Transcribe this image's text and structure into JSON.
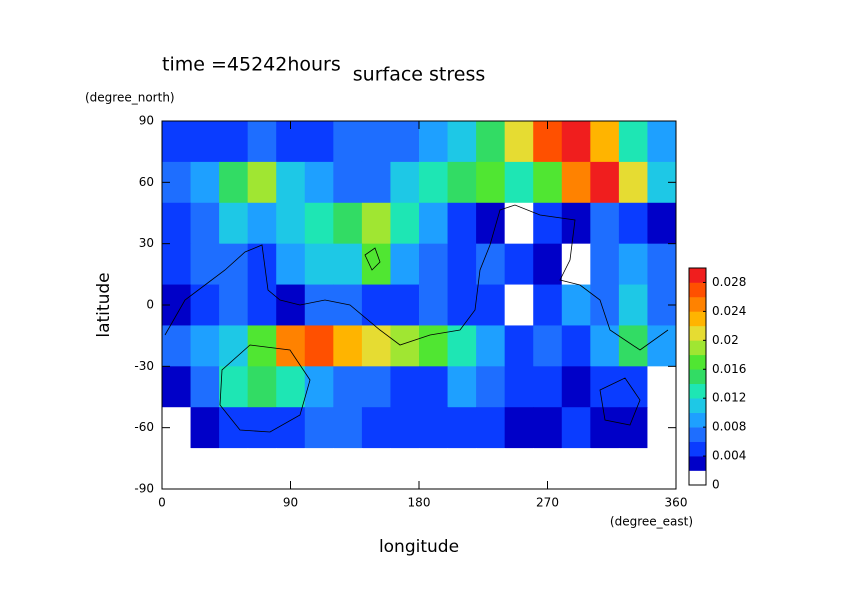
{
  "chart_data": {
    "type": "contour",
    "title": "surface stress",
    "subtitle": "time =45242hours",
    "x_label": "longitude",
    "y_label": "latitude",
    "x_unit": "(degree_east)",
    "y_unit": "(degree_north)",
    "xlim": [
      0,
      360
    ],
    "ylim": [
      -90,
      90
    ],
    "xticks": [
      0,
      90,
      180,
      270,
      360
    ],
    "yticks": [
      -90,
      -60,
      -30,
      0,
      30,
      60,
      90
    ],
    "x": [
      10,
      30,
      50,
      70,
      90,
      110,
      130,
      150,
      170,
      190,
      210,
      230,
      250,
      270,
      290,
      310,
      330,
      350
    ],
    "y": [
      80,
      60,
      40,
      20,
      0,
      -20,
      -40,
      -60,
      -80
    ],
    "z": [
      [
        0.004,
        0.004,
        0.005,
        0.006,
        0.004,
        0.005,
        0.006,
        0.007,
        0.006,
        0.008,
        0.01,
        0.014,
        0.02,
        0.026,
        0.03,
        0.022,
        0.012,
        0.008
      ],
      [
        0.006,
        0.008,
        0.014,
        0.018,
        0.01,
        0.008,
        0.006,
        0.007,
        0.01,
        0.012,
        0.014,
        0.016,
        0.012,
        0.016,
        0.024,
        0.03,
        0.02,
        0.01
      ],
      [
        0.004,
        0.006,
        0.01,
        0.008,
        0.01,
        0.012,
        0.014,
        0.018,
        0.012,
        0.008,
        0.004,
        0.002,
        0.001,
        0.004,
        0.002,
        0.006,
        0.004,
        0.002
      ],
      [
        0.004,
        0.006,
        0.006,
        0.004,
        0.008,
        0.01,
        0.01,
        0.016,
        0.008,
        0.006,
        0.004,
        0.006,
        0.004,
        0.002,
        0.001,
        0.006,
        0.008,
        0.006
      ],
      [
        0.003,
        0.004,
        0.006,
        0.004,
        0.002,
        0.006,
        0.006,
        0.004,
        0.004,
        0.006,
        0.004,
        0.004,
        0.001,
        0.004,
        0.008,
        0.006,
        0.01,
        0.006
      ],
      [
        0.006,
        0.008,
        0.01,
        0.016,
        0.024,
        0.026,
        0.022,
        0.02,
        0.018,
        0.016,
        0.012,
        0.008,
        0.004,
        0.006,
        0.004,
        0.008,
        0.014,
        0.008
      ],
      [
        0.002,
        0.006,
        0.012,
        0.014,
        0.012,
        0.008,
        0.006,
        0.006,
        0.004,
        0.004,
        0.008,
        0.006,
        0.004,
        0.004,
        0.002,
        0.004,
        0.004,
        0.001
      ],
      [
        0.001,
        0.002,
        0.004,
        0.004,
        0.004,
        0.006,
        0.006,
        0.004,
        0.004,
        0.004,
        0.004,
        0.004,
        0.002,
        0.002,
        0.004,
        0.002,
        0.002,
        0.001
      ],
      [
        0,
        0,
        0,
        0,
        0,
        0,
        0,
        0,
        0,
        0,
        0,
        0,
        0,
        0,
        0,
        0,
        0,
        0
      ]
    ],
    "levels": [
      0,
      0.002,
      0.004,
      0.006,
      0.008,
      0.01,
      0.012,
      0.014,
      0.016,
      0.018,
      0.02,
      0.022,
      0.024,
      0.026,
      0.028,
      0.03
    ],
    "colors": [
      "#ffffff",
      "#0000c8",
      "#0a3cff",
      "#1e6eff",
      "#1ea0ff",
      "#1ec8e6",
      "#1ee6b4",
      "#32dc64",
      "#50e632",
      "#a0e632",
      "#e6dc32",
      "#ffb400",
      "#ff8200",
      "#ff5000",
      "#f01e1e"
    ],
    "colorbar_ticks": [
      0,
      0.004,
      0.008,
      0.012,
      0.016,
      0.02,
      0.024,
      0.028
    ]
  }
}
